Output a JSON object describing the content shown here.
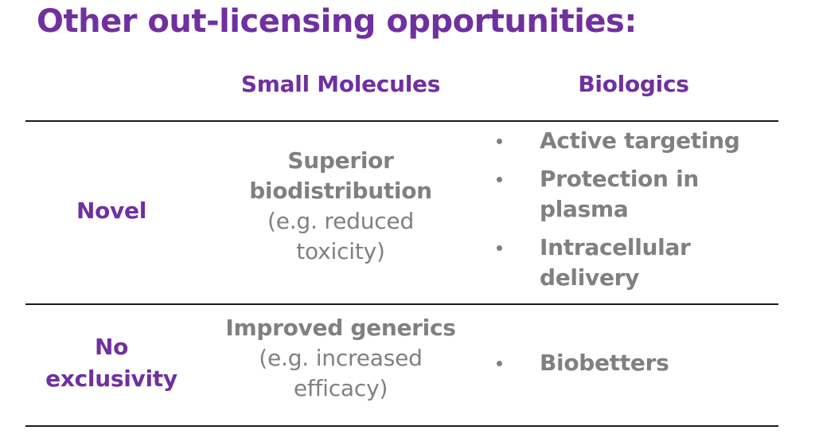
{
  "title": "Other out-licensing opportunities:",
  "columns": {
    "small_molecules": "Small Molecules",
    "biologics": "Biologics"
  },
  "rows": [
    {
      "label_lines": [
        "Novel"
      ],
      "small_molecules": {
        "strong_lines": [
          "Superior",
          "biodistribution"
        ],
        "note_lines": [
          "(e.g. reduced",
          "toxicity)"
        ]
      },
      "biologics": [
        {
          "lines": [
            "Active targeting"
          ]
        },
        {
          "lines": [
            "Protection in",
            "plasma"
          ]
        },
        {
          "lines": [
            "Intracellular",
            "delivery"
          ]
        }
      ]
    },
    {
      "label_lines": [
        "No",
        "exclusivity"
      ],
      "small_molecules": {
        "strong_lines": [
          "Improved generics"
        ],
        "note_lines": [
          "(e.g. increased",
          "efficacy)"
        ]
      },
      "biologics": [
        {
          "lines": [
            "Biobetters"
          ]
        }
      ]
    }
  ],
  "colors": {
    "accent": "#7030a0",
    "body_text": "#808080",
    "rule": "#1a1a1a"
  }
}
